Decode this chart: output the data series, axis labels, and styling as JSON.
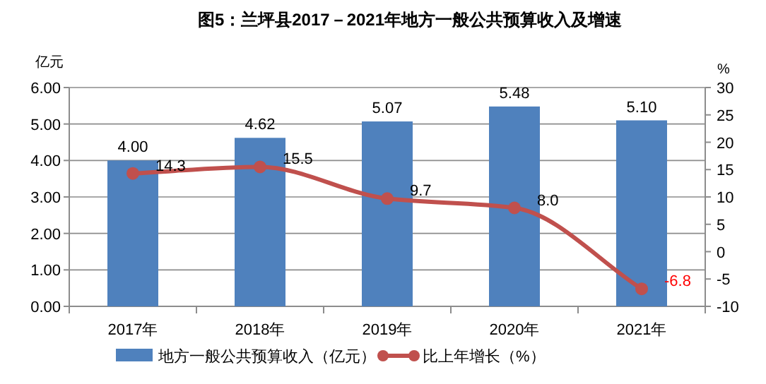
{
  "chart_data": {
    "type": "bar",
    "title": "图5：兰坪县2017－2021年地方一般公共预算收入及增速",
    "ylabel": "亿元",
    "y2label": "%",
    "categories": [
      "2017年",
      "2018年",
      "2019年",
      "2020年",
      "2021年"
    ],
    "series": [
      {
        "name": "地方一般公共预算收入（亿元）",
        "color": "#4f81bd",
        "values": [
          4.0,
          4.62,
          5.07,
          5.48,
          5.1
        ],
        "value_labels": [
          "4.00",
          "4.62",
          "5.07",
          "5.48",
          "5.10"
        ]
      },
      {
        "name": "比上年增长（%）",
        "type": "line",
        "axis": "y2",
        "color": "#c0504d",
        "values": [
          14.3,
          15.5,
          9.7,
          8.0,
          -6.8
        ],
        "value_labels": [
          "14.3",
          "15.5",
          "9.7",
          "8.0",
          "-6.8"
        ],
        "marker": "circle"
      }
    ],
    "ylim": [
      0,
      6
    ],
    "yticks": [
      {
        "value": 0,
        "label": "0.00"
      },
      {
        "value": 1,
        "label": "1.00"
      },
      {
        "value": 2,
        "label": "2.00"
      },
      {
        "value": 3,
        "label": "3.00"
      },
      {
        "value": 4,
        "label": "4.00"
      },
      {
        "value": 5,
        "label": "5.00"
      },
      {
        "value": 6,
        "label": "6.00"
      }
    ],
    "y2lim": [
      -10,
      30
    ],
    "y2ticks": [
      -10,
      -5,
      0,
      5,
      10,
      15,
      20,
      25,
      30
    ],
    "grid": "y",
    "legend": "bottom"
  }
}
